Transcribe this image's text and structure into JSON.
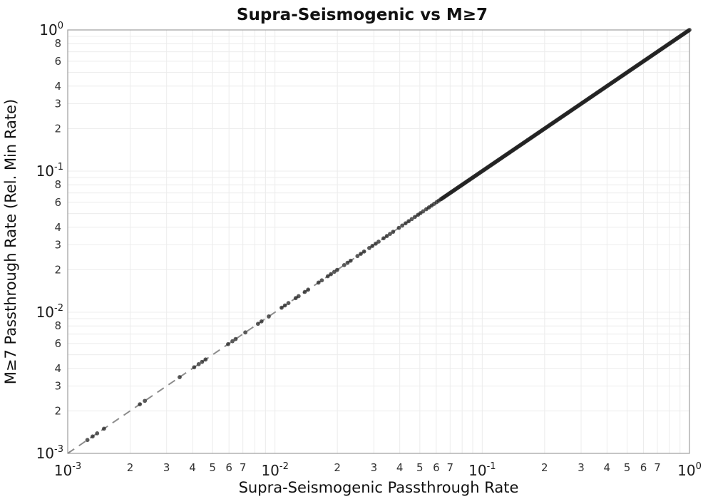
{
  "chart_data": {
    "type": "scatter",
    "title": "Supra-Seismogenic vs M≥7",
    "xlabel": "Supra-Seismogenic Passthrough Rate",
    "ylabel": "M≥7 Passthrough Rate (Rel. Min Rate)",
    "x_scale": "log",
    "y_scale": "log",
    "xlim": [
      0.001,
      1
    ],
    "ylim": [
      0.001,
      1
    ],
    "grid": true,
    "legend": false,
    "axes": {
      "major_exponents": [
        -3,
        -2,
        -1,
        0
      ],
      "x_minor_tick_digits": [
        2,
        3,
        4,
        5,
        6,
        7
      ],
      "y_minor_tick_digits": [
        2,
        3,
        4,
        6,
        8
      ],
      "minor_grid_digits": [
        2,
        3,
        4,
        5,
        6,
        7,
        8,
        9
      ]
    },
    "identity_line": {
      "relation": "y = x",
      "style": "dashed",
      "color": "#8c8c8c",
      "width": 2,
      "dash": [
        11,
        8
      ]
    },
    "series": [
      {
        "name": "passthrough-rates",
        "relation": "y = x (every point lies on the 1:1 diagonal)",
        "marker": {
          "color": "rgba(35,35,35,0.75)",
          "radius": 2.9
        },
        "points_log10_x": [
          -2.905,
          -2.88,
          -2.858,
          -2.825,
          -2.652,
          -2.628,
          -2.46,
          -2.39,
          -2.368,
          -2.352,
          -2.335,
          -2.226,
          -2.205,
          -2.19,
          -2.143,
          -2.082,
          -2.065,
          -2.03,
          -1.968,
          -1.952,
          -1.935,
          -1.9,
          -1.886,
          -1.856,
          -1.84,
          -1.79,
          -1.774,
          -1.745,
          -1.73,
          -1.714,
          -1.7,
          -1.666,
          -1.65,
          -1.635,
          -1.602,
          -1.586,
          -1.57,
          -1.545,
          -1.53,
          -1.514,
          -1.5,
          -1.476,
          -1.46,
          -1.445,
          -1.43,
          -1.402,
          -1.386,
          -1.37,
          -1.355,
          -1.34,
          -1.325,
          -1.31,
          -1.298,
          -1.285,
          -1.27,
          -1.257,
          -1.244,
          -1.232,
          -1.22,
          -1.21
        ],
        "dense_band": {
          "log10_start": -1.2,
          "log10_end": 0,
          "count": 300,
          "note": "points so dense they render as a solid black diagonal band up to (1,1)"
        }
      }
    ],
    "colors": {
      "grid": "#ececec",
      "axis_border": "#9e9e9e",
      "tick_text": "#1a1a1a",
      "background": "#ffffff"
    }
  }
}
